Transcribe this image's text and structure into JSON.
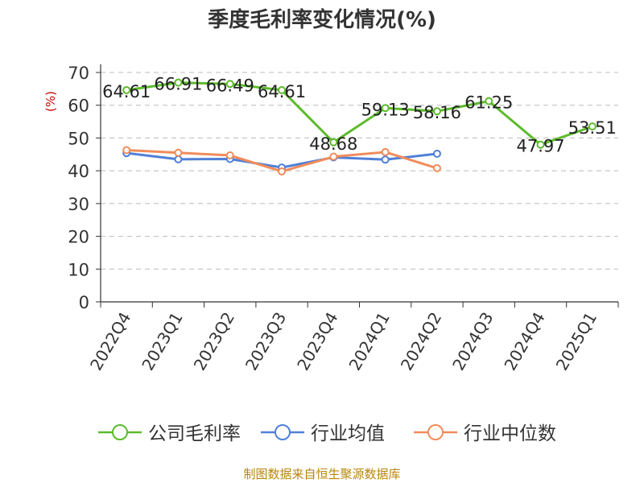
{
  "title": "季度毛利率变化情况(%)",
  "source": "制图数据来自恒生聚源数据库",
  "colors": {
    "company": "#5cbb2c",
    "avg": "#5080d8",
    "median": "#f08c5a",
    "axis": "#333333",
    "grid": "#bbbbbb",
    "unit": "#cc0000"
  },
  "chart_data": {
    "type": "line",
    "title": "季度毛利率变化情况(%)",
    "ylabel": "(%)",
    "xlabel": "",
    "ylim": [
      0,
      70
    ],
    "yticks": [
      0,
      10,
      20,
      30,
      40,
      50,
      60,
      70
    ],
    "grid": true,
    "legend_position": "bottom",
    "categories": [
      "2022Q4",
      "2023Q1",
      "2023Q2",
      "2023Q3",
      "2023Q4",
      "2024Q1",
      "2024Q2",
      "2024Q3",
      "2024Q4",
      "2025Q1"
    ],
    "series": [
      {
        "name": "公司毛利率",
        "color": "#5cbb2c",
        "values": [
          64.61,
          66.91,
          66.49,
          64.61,
          48.68,
          59.13,
          58.16,
          61.25,
          47.97,
          53.51
        ],
        "labels": [
          "64.61",
          "66.91",
          "66.49",
          "64.61",
          "48.68",
          "59.13",
          "58.16",
          "61.25",
          "47.97",
          "53.51"
        ]
      },
      {
        "name": "行业均值",
        "color": "#5080d8",
        "values": [
          45.4,
          43.5,
          43.6,
          41.0,
          44.1,
          43.4,
          45.2,
          null,
          null,
          null
        ]
      },
      {
        "name": "行业中位数",
        "color": "#f08c5a",
        "values": [
          46.3,
          45.5,
          44.7,
          39.8,
          44.3,
          45.7,
          40.8,
          null,
          null,
          null
        ]
      }
    ]
  }
}
